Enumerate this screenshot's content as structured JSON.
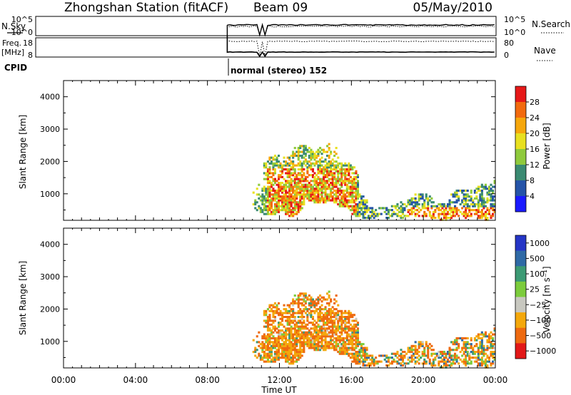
{
  "header": {
    "station": "Zhongshan Station (fitACF)",
    "beam": "Beam 09",
    "date": "05/May/2010"
  },
  "params": {
    "nsky_label": "N.Sky",
    "nsky_ticks": [
      "10^5",
      "10^0"
    ],
    "nsearch_label": "N.Search",
    "nsearch_ticks": [
      "10^5",
      "10^0"
    ],
    "freq_label_1": "Freq.",
    "freq_label_2": "[MHz]",
    "freq_ticks": [
      "18",
      "8"
    ],
    "nave_label": "Nave",
    "nave_ticks": [
      "80",
      "0"
    ],
    "cpid_label": "CPID",
    "cpid_value": "normal (stereo) 152"
  },
  "colors": {
    "power": [
      "#1a1aff",
      "#2554a8",
      "#3a8a72",
      "#8fca3c",
      "#e8e020",
      "#f6a70c",
      "#f26a0e",
      "#e61818"
    ],
    "velocity": [
      "#2535c6",
      "#2f6aa6",
      "#3c9a74",
      "#7ccc3c",
      "#c8c8c0",
      "#f4a80c",
      "#ee6a10",
      "#e21818"
    ]
  },
  "chart_data": [
    {
      "type": "heatmap",
      "title": "",
      "xlabel": "",
      "ylabel": "Slant Range [km]",
      "x_range": [
        0,
        24
      ],
      "ylim": [
        180,
        4500
      ],
      "xticks": [],
      "yticks": [
        "1000",
        "2000",
        "3000",
        "4000"
      ],
      "colorbar": {
        "label": "Power [dB]",
        "range": [
          0,
          32
        ],
        "ticks": [
          "4",
          "8",
          "12",
          "16",
          "20",
          "24",
          "28"
        ]
      },
      "echo_regions": [
        {
          "t_start": 10.5,
          "t_end": 16.8,
          "range_start": 300,
          "range_end": 2600,
          "value": "mixed 4-30 dB"
        },
        {
          "t_start": 16.0,
          "t_end": 18.5,
          "range_start": 180,
          "range_end": 900,
          "value": "4-20 dB"
        },
        {
          "t_start": 18.0,
          "t_end": 24.0,
          "range_start": 180,
          "range_end": 1500,
          "value": "4-30 dB"
        }
      ]
    },
    {
      "type": "heatmap",
      "title": "",
      "xlabel": "Time UT",
      "ylabel": "Slant Range [km]",
      "x_range": [
        0,
        24
      ],
      "ylim": [
        180,
        4500
      ],
      "xticks": [
        "00:00",
        "04:00",
        "08:00",
        "12:00",
        "16:00",
        "20:00",
        "00:00"
      ],
      "yticks": [
        "1000",
        "2000",
        "3000",
        "4000"
      ],
      "colorbar": {
        "label": "Velocity [m s⁻¹]",
        "range": [
          -1400,
          1400
        ],
        "ticks": [
          "1000",
          "500",
          "100",
          "25",
          "−25",
          "−100",
          "−500",
          "−1000"
        ]
      },
      "echo_regions": [
        {
          "t_start": 10.5,
          "t_end": 16.8,
          "range_start": 300,
          "range_end": 2600,
          "value": "mostly -100 to -500 m/s"
        },
        {
          "t_start": 16.0,
          "t_end": 24.0,
          "range_start": 180,
          "range_end": 1200,
          "value": "mixed -500 to 500 m/s"
        }
      ]
    }
  ]
}
